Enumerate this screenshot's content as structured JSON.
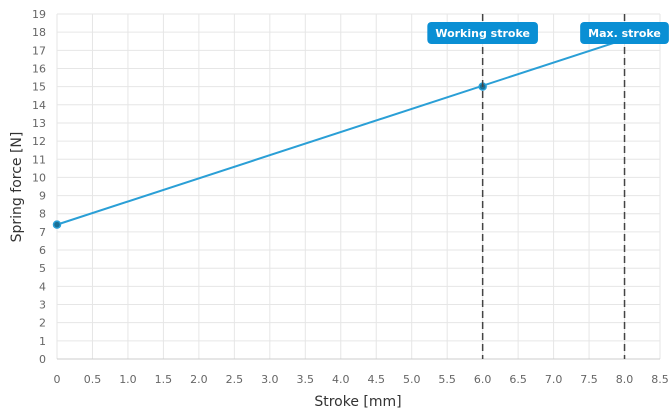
{
  "chart_data": {
    "type": "line",
    "title": "",
    "xlabel": "Stroke [mm]",
    "ylabel": "Spring force [N]",
    "xlim": [
      0,
      8.5
    ],
    "ylim": [
      0,
      19
    ],
    "grid": true,
    "x_ticks": [
      "0",
      "0.5",
      "1.0",
      "1.5",
      "2.0",
      "2.5",
      "3.0",
      "3.5",
      "4.0",
      "4.5",
      "5.0",
      "5.5",
      "6.0",
      "6.5",
      "7.0",
      "7.5",
      "8.0",
      "8.5"
    ],
    "y_ticks": [
      "0",
      "1",
      "2",
      "3",
      "4",
      "5",
      "6",
      "7",
      "8",
      "9",
      "10",
      "11",
      "12",
      "13",
      "14",
      "15",
      "16",
      "17",
      "18",
      "19"
    ],
    "series": [
      {
        "x": [
          0,
          8.0
        ],
        "y": [
          7.4,
          17.6
        ],
        "color": "#2a9fd6",
        "markers": [
          {
            "x": 0,
            "y": 7.4
          },
          {
            "x": 6.0,
            "y": 15.0
          }
        ]
      }
    ],
    "reference_lines": [
      {
        "x": 6.0,
        "label": "Working stroke"
      },
      {
        "x": 8.0,
        "label": "Max. stroke"
      }
    ],
    "colors": {
      "line": "#2a9fd6",
      "badge": "#0a8fd4",
      "grid": "#e6e6e6",
      "reference": "#444444"
    }
  }
}
